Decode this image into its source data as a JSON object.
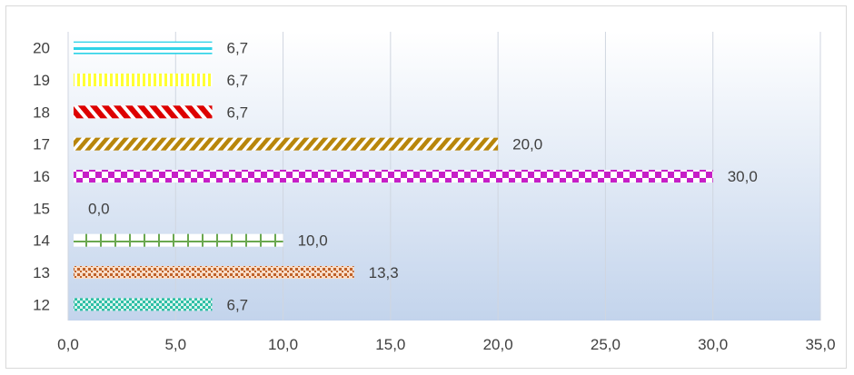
{
  "chart_data": {
    "type": "bar",
    "orientation": "horizontal",
    "categories": [
      "12",
      "13",
      "14",
      "15",
      "16",
      "17",
      "18",
      "19",
      "20"
    ],
    "values": [
      6.7,
      13.3,
      10.0,
      0.0,
      30.0,
      20.0,
      6.7,
      6.7,
      6.7
    ],
    "data_labels": [
      "6,7",
      "13,3",
      "10,0",
      "0,0",
      "30,0",
      "20,0",
      "6,7",
      "6,7",
      "6,7"
    ],
    "x_ticks": [
      0,
      5,
      10,
      15,
      20,
      25,
      30,
      35
    ],
    "x_tick_labels": [
      "0,0",
      "5,0",
      "10,0",
      "15,0",
      "20,0",
      "25,0",
      "30,0",
      "35,0"
    ],
    "xlim": [
      0,
      35
    ],
    "title": "",
    "xlabel": "",
    "ylabel": "",
    "grid": "vertical",
    "legend": "none",
    "colors": {
      "plot_gradient_top": "#ffffff",
      "plot_gradient_bottom": "#c3d4ec",
      "gridline": "#d0d6e0",
      "bars": [
        "#2ebfa5",
        "#c0622a",
        "#6aa84f",
        "#999999",
        "#c71fc7",
        "#b8860b",
        "#dd0000",
        "#ffff33",
        "#2fd3e8"
      ]
    }
  }
}
